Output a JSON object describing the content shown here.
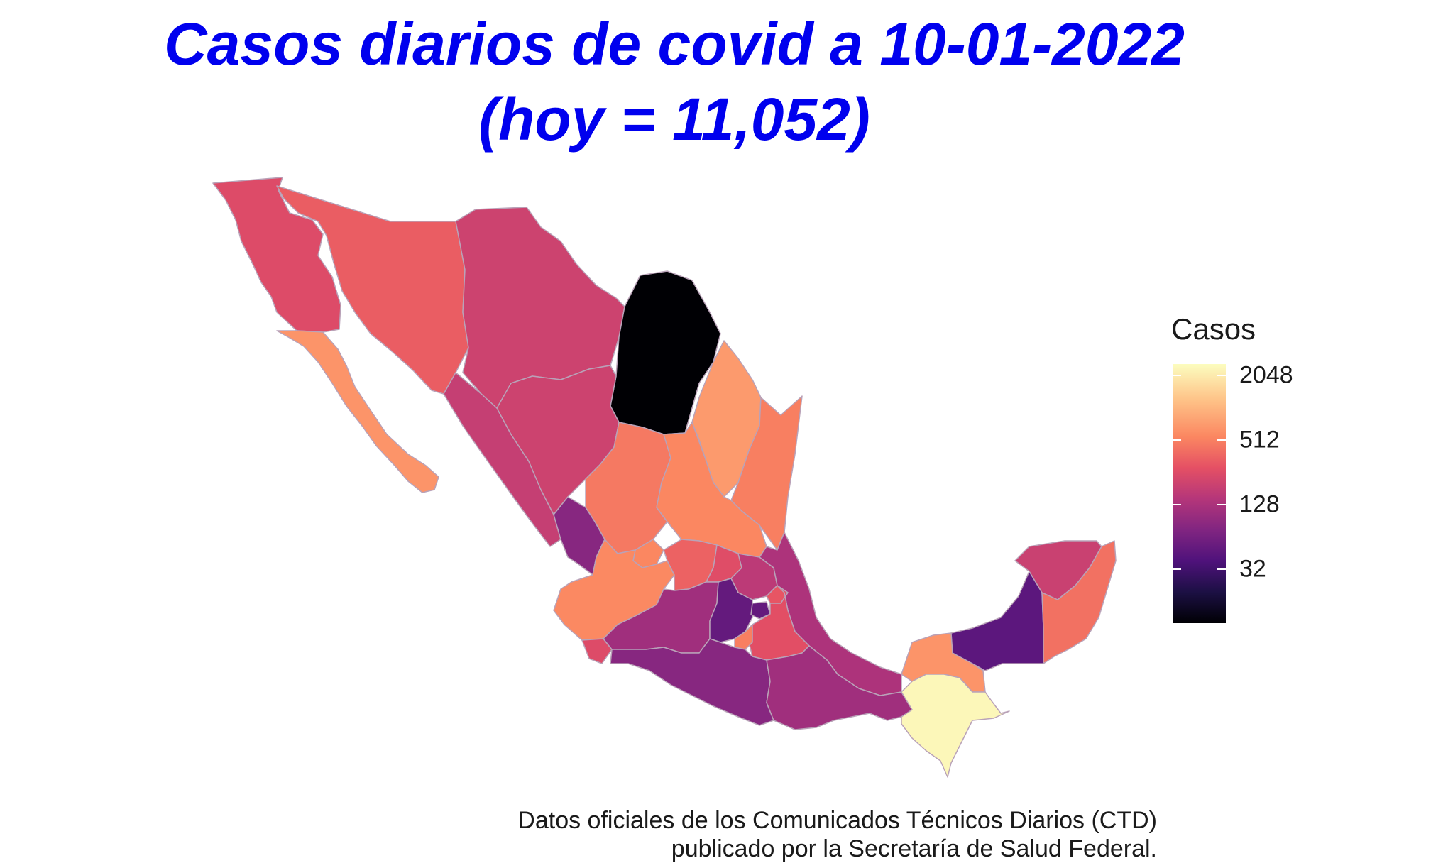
{
  "title_line1": "Casos diarios de covid a 10-01-2022",
  "title_line2": "(hoy = 11,052)",
  "legend": {
    "title": "Casos",
    "ticks": [
      {
        "label": "2048",
        "value": 2048
      },
      {
        "label": "512",
        "value": 512
      },
      {
        "label": "128",
        "value": 128
      },
      {
        "label": "32",
        "value": 32
      }
    ],
    "scale": "log2",
    "domain": [
      10,
      2600
    ],
    "palette": "magma"
  },
  "caption": {
    "line1": "Datos oficiales de los Comunicados Técnicos Diarios (CTD)",
    "line2": "publicado por la Secretaría de Salud Federal."
  },
  "states": [
    {
      "key": "baja_california",
      "cases": 250
    },
    {
      "key": "baja_california_sur",
      "cases": 650
    },
    {
      "key": "sonora",
      "cases": 330
    },
    {
      "key": "chihuahua",
      "cases": 200
    },
    {
      "key": "coahuila",
      "cases": 10
    },
    {
      "key": "nuevo_leon",
      "cases": 700
    },
    {
      "key": "tamaulipas",
      "cases": 500
    },
    {
      "key": "sinaloa",
      "cases": 180
    },
    {
      "key": "durango",
      "cases": 200
    },
    {
      "key": "zacatecas",
      "cases": 460
    },
    {
      "key": "san_luis_potosi",
      "cases": 550
    },
    {
      "key": "nayarit",
      "cases": 80
    },
    {
      "key": "aguascalientes",
      "cases": 550
    },
    {
      "key": "jalisco",
      "cases": 560
    },
    {
      "key": "guanajuato",
      "cases": 350
    },
    {
      "key": "queretaro",
      "cases": 260
    },
    {
      "key": "hidalgo",
      "cases": 160
    },
    {
      "key": "veracruz",
      "cases": 130
    },
    {
      "key": "colima",
      "cases": 250
    },
    {
      "key": "michoacan",
      "cases": 110
    },
    {
      "key": "estado_de_mexico",
      "cases": 50
    },
    {
      "key": "ciudad_de_mexico",
      "cases": 50
    },
    {
      "key": "tlaxcala",
      "cases": 300
    },
    {
      "key": "puebla",
      "cases": 270
    },
    {
      "key": "morelos",
      "cases": 500
    },
    {
      "key": "guerrero",
      "cases": 80
    },
    {
      "key": "oaxaca",
      "cases": 110
    },
    {
      "key": "tabasco",
      "cases": 650
    },
    {
      "key": "chiapas",
      "cases": 2400
    },
    {
      "key": "campeche",
      "cases": 45
    },
    {
      "key": "yucatan",
      "cases": 190
    },
    {
      "key": "quintana_roo",
      "cases": 420
    }
  ]
}
